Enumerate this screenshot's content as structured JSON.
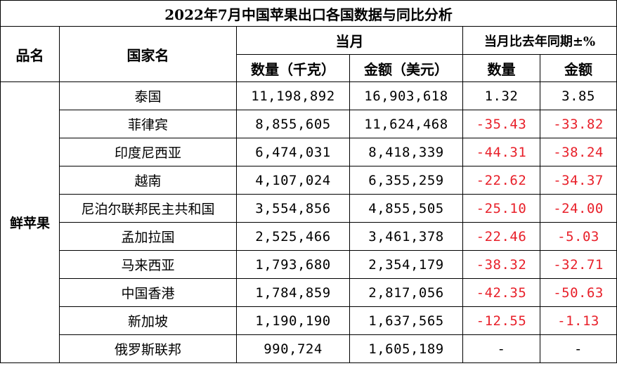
{
  "title": "2022年7月中国苹果出口各国数据与同比分析",
  "headers": {
    "product": "品名",
    "country": "国家名",
    "current_month": "当月",
    "yoy": "当月比去年同期±%",
    "quantity_kg": "数量（千克）",
    "amount_usd": "金额（美元）",
    "quantity": "数量",
    "amount": "金额"
  },
  "category": "鲜苹果",
  "colors": {
    "negative": "#e8202a",
    "positive": "#000000"
  },
  "rows": [
    {
      "country": "泰国",
      "qty": "11,198,892",
      "amt": "16,903,618",
      "qty_pct": "1.32",
      "amt_pct": "3.85"
    },
    {
      "country": "菲律宾",
      "qty": "8,855,605",
      "amt": "11,624,468",
      "qty_pct": "-35.43",
      "amt_pct": "-33.82"
    },
    {
      "country": "印度尼西亚",
      "qty": "6,474,031",
      "amt": "8,418,339",
      "qty_pct": "-44.31",
      "amt_pct": "-38.24"
    },
    {
      "country": "越南",
      "qty": "4,107,024",
      "amt": "6,355,259",
      "qty_pct": "-22.62",
      "amt_pct": "-34.37"
    },
    {
      "country": "尼泊尔联邦民主共和国",
      "qty": "3,554,856",
      "amt": "4,855,505",
      "qty_pct": "-25.10",
      "amt_pct": "-24.00"
    },
    {
      "country": "孟加拉国",
      "qty": "2,525,466",
      "amt": "3,461,378",
      "qty_pct": "-22.46",
      "amt_pct": "-5.03"
    },
    {
      "country": "马来西亚",
      "qty": "1,793,680",
      "amt": "2,354,179",
      "qty_pct": "-38.32",
      "amt_pct": "-32.71"
    },
    {
      "country": "中国香港",
      "qty": "1,784,859",
      "amt": "2,817,056",
      "qty_pct": "-42.35",
      "amt_pct": "-50.63"
    },
    {
      "country": "新加坡",
      "qty": "1,190,190",
      "amt": "1,637,565",
      "qty_pct": "-12.55",
      "amt_pct": "-1.13"
    },
    {
      "country": "俄罗斯联邦",
      "qty": "990,724",
      "amt": "1,605,189",
      "qty_pct": "-",
      "amt_pct": "-"
    }
  ]
}
